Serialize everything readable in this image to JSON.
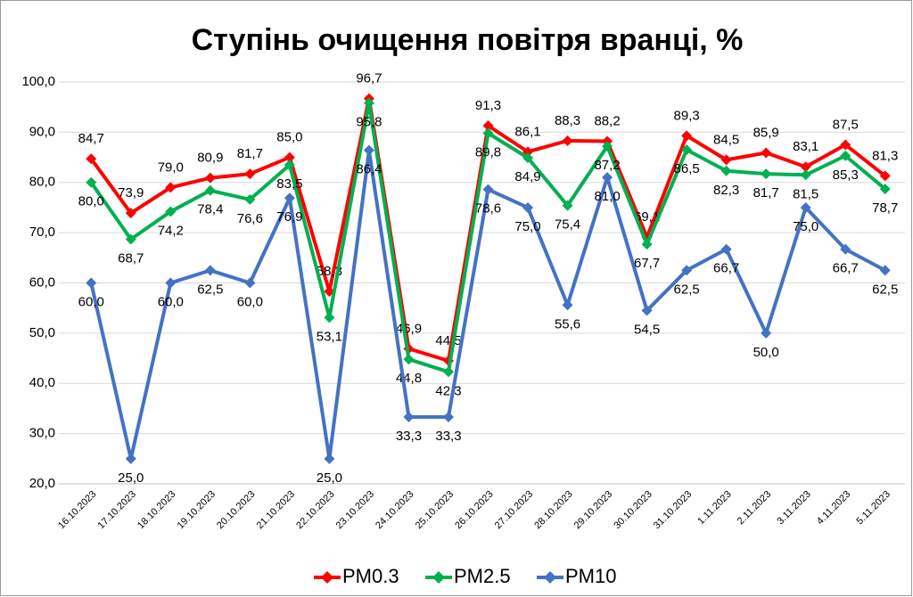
{
  "chart_data": {
    "type": "line",
    "title": "Ступінь очищення повітря вранці, %",
    "categories": [
      "16.10.2023",
      "17.10.2023",
      "18.10.2023",
      "19.10.2023",
      "20.10.2023",
      "21.10.2023",
      "22.10.2023",
      "23.10.2023",
      "24.10.2023",
      "25.10.2023",
      "26.10.2023",
      "27.10.2023",
      "28.10.2023",
      "29.10.2023",
      "30.10.2023",
      "31.10.2023",
      "1.11.2023",
      "2.11.2023",
      "3.11.2023",
      "4.11.2023",
      "5.11.2023"
    ],
    "series": [
      {
        "name": "PM0.3",
        "color": "#ff0000",
        "values": [
          84.7,
          73.9,
          79.0,
          80.9,
          81.7,
          85.0,
          58.3,
          96.7,
          46.9,
          44.5,
          91.3,
          86.1,
          88.3,
          88.2,
          69.1,
          89.3,
          84.5,
          85.9,
          83.1,
          87.5,
          81.3
        ],
        "value_labels": [
          "84,7",
          "73,9",
          "79,0",
          "80,9",
          "81,7",
          "85,0",
          "58,3",
          "96,7",
          "46,9",
          "44,5",
          "91,3",
          "86,1",
          "88,3",
          "88,2",
          "69,1",
          "89,3",
          "84,5",
          "85,9",
          "83,1",
          "87,5",
          "81,3"
        ]
      },
      {
        "name": "PM2.5",
        "color": "#00b050",
        "values": [
          80.0,
          68.7,
          74.2,
          78.4,
          76.6,
          83.5,
          53.1,
          95.8,
          44.8,
          42.3,
          89.8,
          84.9,
          75.4,
          87.2,
          67.7,
          86.5,
          82.3,
          81.7,
          81.5,
          85.3,
          78.7
        ],
        "value_labels": [
          "80,0",
          "68,7",
          "74,2",
          "78,4",
          "76,6",
          "83,5",
          "53,1",
          "95,8",
          "44,8",
          "42,3",
          "89,8",
          "84,9",
          "75,4",
          "87,2",
          "67,7",
          "86,5",
          "82,3",
          "81,7",
          "81,5",
          "85,3",
          "78,7"
        ]
      },
      {
        "name": "PM10",
        "color": "#4472c4",
        "values": [
          60.0,
          25.0,
          60.0,
          62.5,
          60.0,
          76.9,
          25.0,
          86.4,
          33.3,
          33.3,
          78.6,
          75.0,
          55.6,
          81.0,
          54.5,
          62.5,
          66.7,
          50.0,
          75.0,
          66.7,
          62.5
        ],
        "value_labels": [
          "60,0",
          "25,0",
          "60,0",
          "62,5",
          "60,0",
          "76,9",
          "25,0",
          "86,4",
          "33,3",
          "33,3",
          "78,6",
          "75,0",
          "55,6",
          "81,0",
          "54,5",
          "62,5",
          "66,7",
          "50,0",
          "75,0",
          "66,7",
          "62,5"
        ]
      }
    ],
    "ylim": [
      20,
      100
    ],
    "yticks": [
      {
        "value": 20,
        "label": "20,0"
      },
      {
        "value": 30,
        "label": "30,0"
      },
      {
        "value": 40,
        "label": "40,0"
      },
      {
        "value": 50,
        "label": "50,0"
      },
      {
        "value": 60,
        "label": "60,0"
      },
      {
        "value": 70,
        "label": "70,0"
      },
      {
        "value": 80,
        "label": "80,0"
      },
      {
        "value": 90,
        "label": "90,0"
      },
      {
        "value": 100,
        "label": "100,0"
      }
    ],
    "grid": true,
    "legend": "bottom"
  }
}
